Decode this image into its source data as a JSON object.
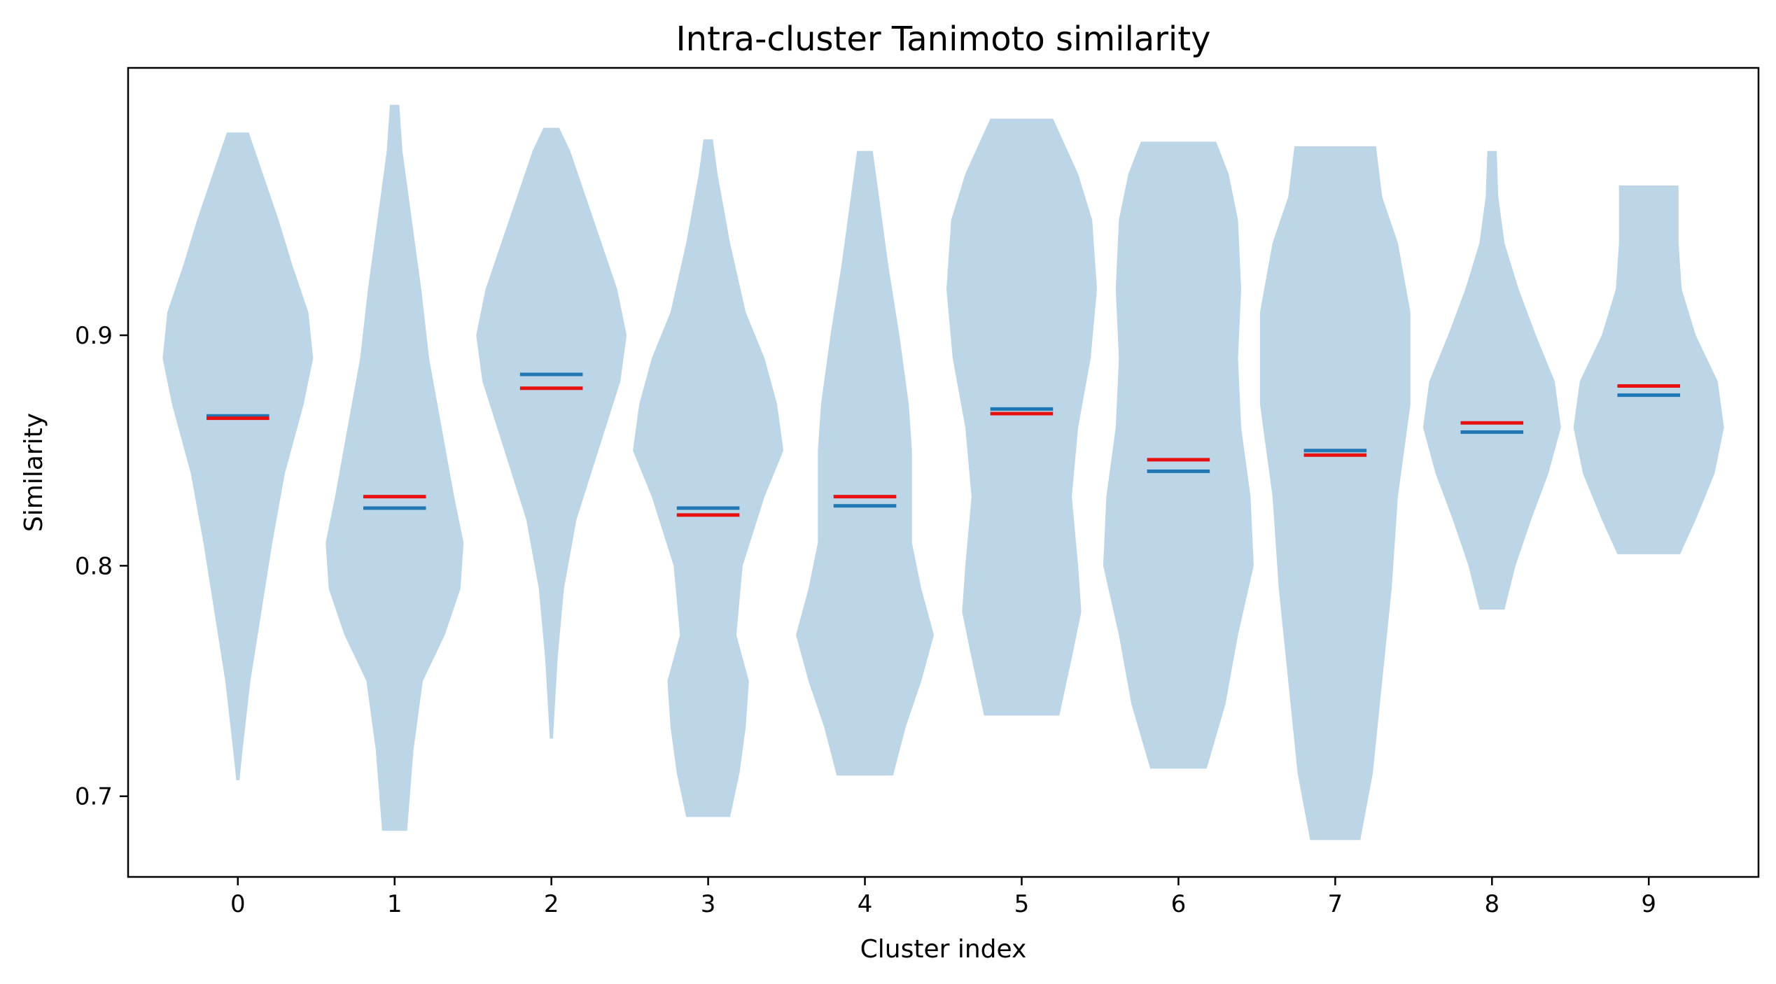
{
  "chart_data": {
    "type": "violin",
    "title": "Intra-cluster Tanimoto similarity",
    "xlabel": "Cluster index",
    "ylabel": "Similarity",
    "xlim": [
      -0.7,
      9.7
    ],
    "ylim": [
      0.665,
      1.016
    ],
    "x_ticks": [
      "0",
      "1",
      "2",
      "3",
      "4",
      "5",
      "6",
      "7",
      "8",
      "9"
    ],
    "y_ticks": [
      0.7,
      0.8,
      0.9
    ],
    "y_tick_labels": [
      "0.7",
      "0.8",
      "0.9"
    ],
    "grid": false,
    "legend": "none",
    "colors": {
      "violin_fill": "#bcd6e8",
      "median_line": "#1f77b4",
      "mean_line": "#e81010"
    },
    "violins": [
      {
        "cluster": 0,
        "mean": 0.864,
        "median": 0.865,
        "profile": [
          [
            0.707,
            0.01
          ],
          [
            0.72,
            0.03
          ],
          [
            0.75,
            0.08
          ],
          [
            0.78,
            0.15
          ],
          [
            0.81,
            0.22
          ],
          [
            0.84,
            0.3
          ],
          [
            0.87,
            0.42
          ],
          [
            0.89,
            0.48
          ],
          [
            0.91,
            0.45
          ],
          [
            0.93,
            0.35
          ],
          [
            0.95,
            0.26
          ],
          [
            0.97,
            0.16
          ],
          [
            0.988,
            0.07
          ]
        ]
      },
      {
        "cluster": 1,
        "mean": 0.83,
        "median": 0.825,
        "profile": [
          [
            0.685,
            0.08
          ],
          [
            0.72,
            0.12
          ],
          [
            0.75,
            0.18
          ],
          [
            0.77,
            0.32
          ],
          [
            0.79,
            0.42
          ],
          [
            0.81,
            0.44
          ],
          [
            0.83,
            0.38
          ],
          [
            0.86,
            0.3
          ],
          [
            0.89,
            0.22
          ],
          [
            0.92,
            0.17
          ],
          [
            0.95,
            0.11
          ],
          [
            0.98,
            0.05
          ],
          [
            1.0,
            0.03
          ]
        ]
      },
      {
        "cluster": 2,
        "mean": 0.877,
        "median": 0.883,
        "profile": [
          [
            0.725,
            0.01
          ],
          [
            0.76,
            0.04
          ],
          [
            0.79,
            0.08
          ],
          [
            0.82,
            0.16
          ],
          [
            0.85,
            0.3
          ],
          [
            0.88,
            0.44
          ],
          [
            0.9,
            0.48
          ],
          [
            0.92,
            0.42
          ],
          [
            0.94,
            0.32
          ],
          [
            0.96,
            0.22
          ],
          [
            0.98,
            0.12
          ],
          [
            0.99,
            0.05
          ]
        ]
      },
      {
        "cluster": 3,
        "mean": 0.822,
        "median": 0.825,
        "profile": [
          [
            0.691,
            0.14
          ],
          [
            0.71,
            0.2
          ],
          [
            0.73,
            0.24
          ],
          [
            0.75,
            0.26
          ],
          [
            0.77,
            0.18
          ],
          [
            0.8,
            0.22
          ],
          [
            0.83,
            0.36
          ],
          [
            0.85,
            0.48
          ],
          [
            0.87,
            0.44
          ],
          [
            0.89,
            0.36
          ],
          [
            0.91,
            0.24
          ],
          [
            0.94,
            0.14
          ],
          [
            0.97,
            0.06
          ],
          [
            0.985,
            0.03
          ]
        ]
      },
      {
        "cluster": 4,
        "mean": 0.83,
        "median": 0.826,
        "profile": [
          [
            0.709,
            0.18
          ],
          [
            0.73,
            0.26
          ],
          [
            0.75,
            0.36
          ],
          [
            0.77,
            0.44
          ],
          [
            0.79,
            0.36
          ],
          [
            0.81,
            0.3
          ],
          [
            0.83,
            0.3
          ],
          [
            0.85,
            0.3
          ],
          [
            0.87,
            0.28
          ],
          [
            0.9,
            0.22
          ],
          [
            0.93,
            0.15
          ],
          [
            0.96,
            0.09
          ],
          [
            0.98,
            0.05
          ]
        ]
      },
      {
        "cluster": 5,
        "mean": 0.866,
        "median": 0.868,
        "profile": [
          [
            0.735,
            0.24
          ],
          [
            0.76,
            0.32
          ],
          [
            0.78,
            0.38
          ],
          [
            0.8,
            0.36
          ],
          [
            0.83,
            0.32
          ],
          [
            0.86,
            0.36
          ],
          [
            0.89,
            0.44
          ],
          [
            0.92,
            0.48
          ],
          [
            0.95,
            0.45
          ],
          [
            0.97,
            0.36
          ],
          [
            0.985,
            0.26
          ],
          [
            0.994,
            0.2
          ]
        ]
      },
      {
        "cluster": 6,
        "mean": 0.846,
        "median": 0.841,
        "profile": [
          [
            0.712,
            0.18
          ],
          [
            0.74,
            0.3
          ],
          [
            0.77,
            0.38
          ],
          [
            0.8,
            0.48
          ],
          [
            0.83,
            0.46
          ],
          [
            0.86,
            0.4
          ],
          [
            0.89,
            0.38
          ],
          [
            0.92,
            0.4
          ],
          [
            0.95,
            0.38
          ],
          [
            0.97,
            0.32
          ],
          [
            0.984,
            0.24
          ]
        ]
      },
      {
        "cluster": 7,
        "mean": 0.848,
        "median": 0.85,
        "profile": [
          [
            0.681,
            0.16
          ],
          [
            0.71,
            0.24
          ],
          [
            0.75,
            0.3
          ],
          [
            0.79,
            0.36
          ],
          [
            0.83,
            0.4
          ],
          [
            0.87,
            0.48
          ],
          [
            0.91,
            0.48
          ],
          [
            0.94,
            0.4
          ],
          [
            0.96,
            0.3
          ],
          [
            0.982,
            0.26
          ]
        ]
      },
      {
        "cluster": 8,
        "mean": 0.862,
        "median": 0.858,
        "profile": [
          [
            0.781,
            0.08
          ],
          [
            0.8,
            0.15
          ],
          [
            0.82,
            0.25
          ],
          [
            0.84,
            0.36
          ],
          [
            0.86,
            0.44
          ],
          [
            0.88,
            0.4
          ],
          [
            0.9,
            0.28
          ],
          [
            0.92,
            0.17
          ],
          [
            0.94,
            0.08
          ],
          [
            0.96,
            0.04
          ],
          [
            0.98,
            0.03
          ]
        ]
      },
      {
        "cluster": 9,
        "mean": 0.878,
        "median": 0.874,
        "profile": [
          [
            0.805,
            0.2
          ],
          [
            0.82,
            0.3
          ],
          [
            0.84,
            0.42
          ],
          [
            0.86,
            0.48
          ],
          [
            0.88,
            0.44
          ],
          [
            0.9,
            0.3
          ],
          [
            0.92,
            0.21
          ],
          [
            0.94,
            0.19
          ],
          [
            0.965,
            0.19
          ]
        ]
      }
    ]
  }
}
